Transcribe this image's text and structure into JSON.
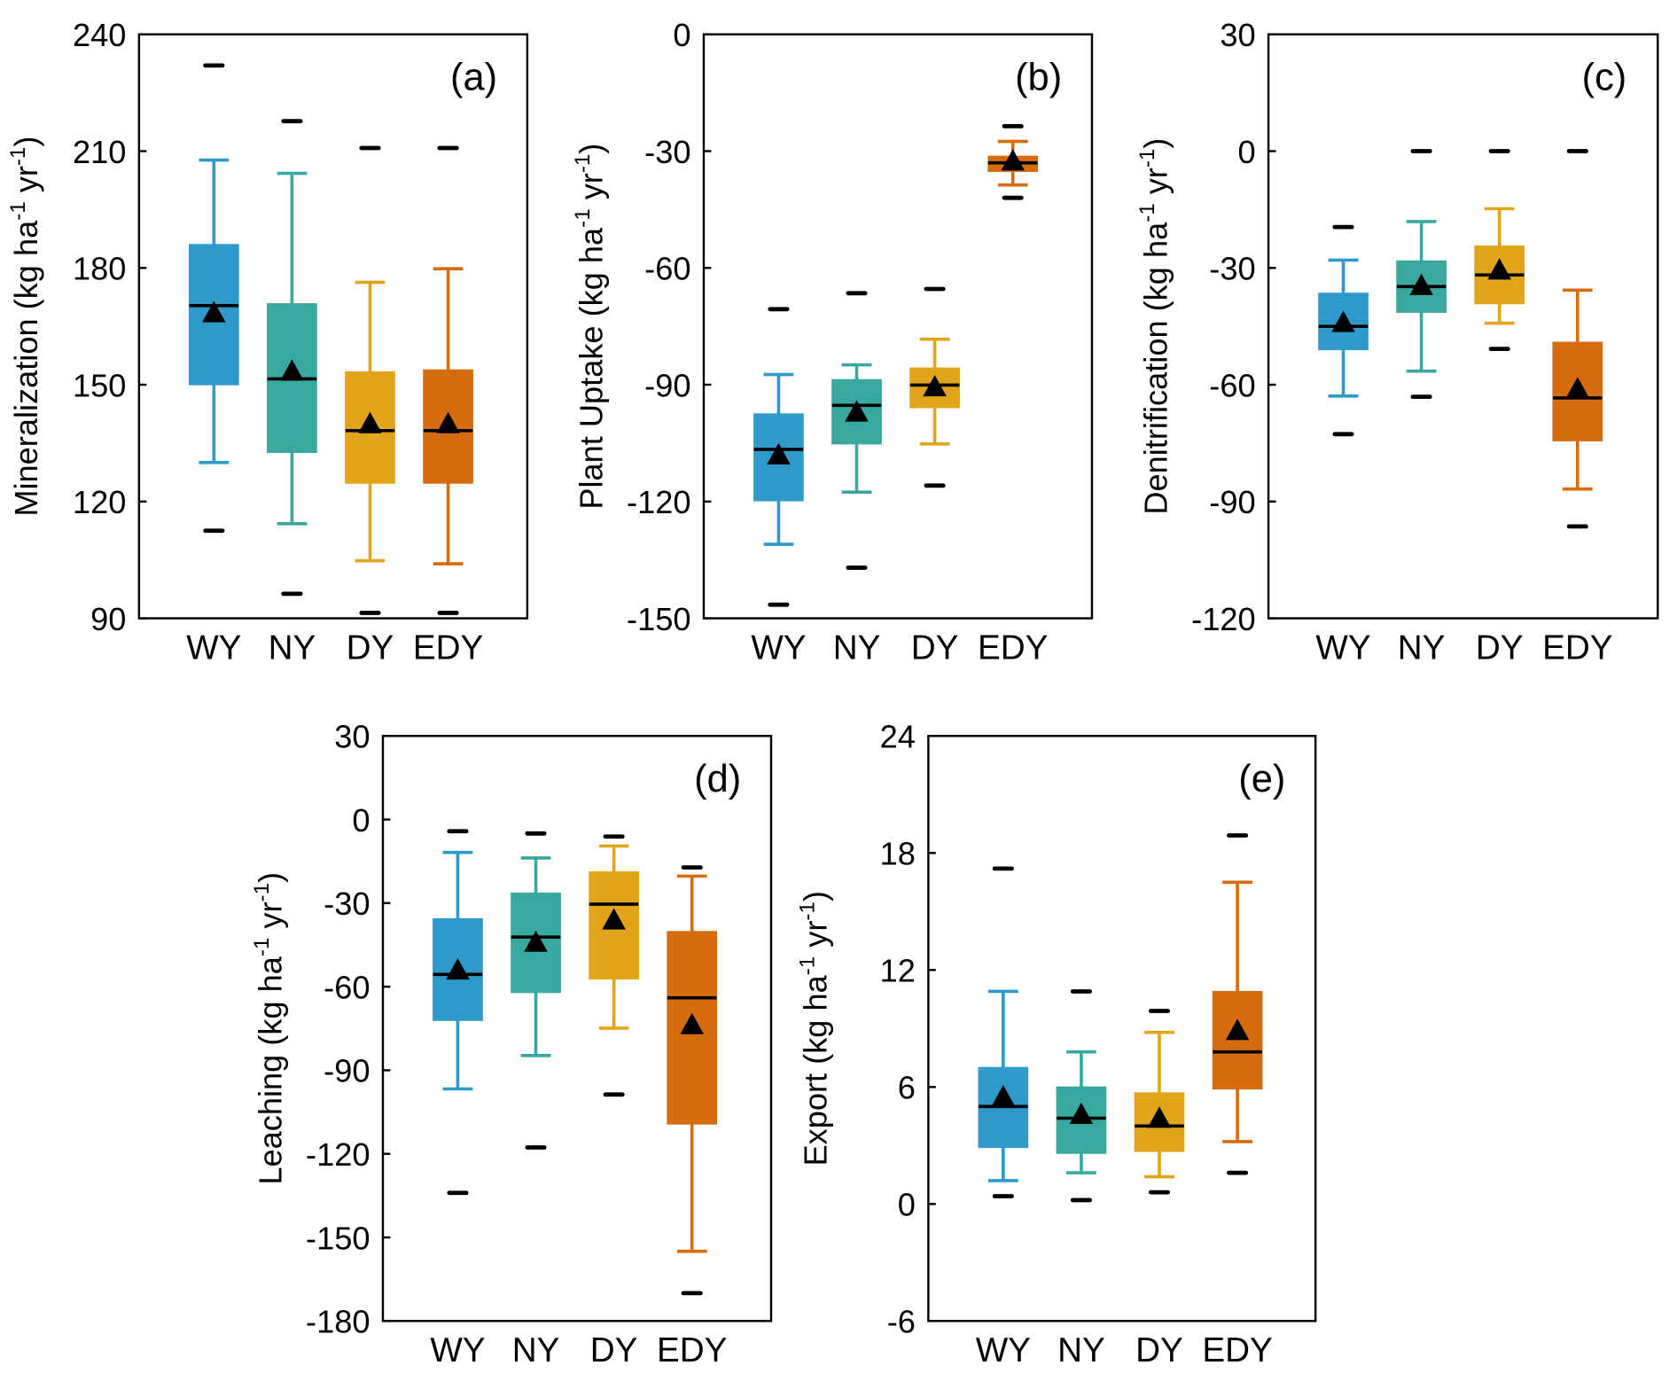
{
  "colors": {
    "WY": "#2e9acb",
    "NY": "#37a9a0",
    "DY": "#e2a41b",
    "EDY": "#d76c0e"
  },
  "chart_data": [
    {
      "type": "box",
      "panel_label": "(a)",
      "ylabel": "Mineralization (kg ha-1 yr-1)",
      "ylim": [
        90,
        240
      ],
      "yticks": [
        90,
        120,
        150,
        180,
        210,
        240
      ],
      "categories": [
        "WY",
        "NY",
        "DY",
        "EDY"
      ],
      "boxes": [
        {
          "outlier_high": 232,
          "whisker_high": 207.7,
          "q3": 186,
          "median": 170.3,
          "mean": 168.5,
          "q1": 150,
          "whisker_low": 130,
          "outlier_low": 112.5
        },
        {
          "outlier_high": 217.7,
          "whisker_high": 204.3,
          "q3": 170.8,
          "median": 151.5,
          "mean": 153.5,
          "q1": 132.6,
          "whisker_low": 114.3,
          "outlier_low": 96.3
        },
        {
          "outlier_high": 210.8,
          "whisker_high": 176.3,
          "q3": 153.3,
          "median": 138.2,
          "mean": 140,
          "q1": 124.7,
          "whisker_low": 104.8,
          "outlier_low": 91.4
        },
        {
          "outlier_high": 210.8,
          "whisker_high": 179.8,
          "q3": 153.8,
          "median": 138.2,
          "mean": 140,
          "q1": 124.7,
          "whisker_low": 104,
          "outlier_low": 91.4
        }
      ]
    },
    {
      "type": "box",
      "panel_label": "(b)",
      "ylabel": "Plant Uptake (kg ha-1 yr-1)",
      "ylim": [
        -150,
        0
      ],
      "yticks": [
        -150,
        -120,
        -90,
        -60,
        -30,
        0
      ],
      "categories": [
        "WY",
        "NY",
        "DY",
        "EDY"
      ],
      "boxes": [
        {
          "outlier_high": -70.6,
          "whisker_high": -87.4,
          "q3": -97.5,
          "median": -106.6,
          "mean": -108,
          "q1": -119.8,
          "whisker_low": -131,
          "outlier_low": -146.5
        },
        {
          "outlier_high": -66.5,
          "whisker_high": -84.9,
          "q3": -88.7,
          "median": -95.3,
          "mean": -97,
          "q1": -105.2,
          "whisker_low": -117.6,
          "outlier_low": -137
        },
        {
          "outlier_high": -65.4,
          "whisker_high": -78.3,
          "q3": -85.7,
          "median": -90.1,
          "mean": -90.5,
          "q1": -95.9,
          "whisker_low": -105.2,
          "outlier_low": -115.9
        },
        {
          "outlier_high": -23.6,
          "whisker_high": -27.5,
          "q3": -31.3,
          "median": -33,
          "mean": -32.5,
          "q1": -35.2,
          "whisker_low": -38.7,
          "outlier_low": -42
        }
      ]
    },
    {
      "type": "box",
      "panel_label": "(c)",
      "ylabel": "Denitrification (kg ha-1 yr-1)",
      "ylim": [
        -120,
        30
      ],
      "yticks": [
        -120,
        -90,
        -60,
        -30,
        0,
        30
      ],
      "categories": [
        "WY",
        "NY",
        "DY",
        "EDY"
      ],
      "boxes": [
        {
          "outlier_high": -19.5,
          "whisker_high": -28,
          "q3": -36.5,
          "median": -45,
          "mean": -44,
          "q1": -51,
          "whisker_low": -62.9,
          "outlier_low": -72.7
        },
        {
          "outlier_high": 0,
          "whisker_high": -18.1,
          "q3": -28.2,
          "median": -34.8,
          "mean": -34.5,
          "q1": -41.4,
          "whisker_low": -56.5,
          "outlier_low": -63.1
        },
        {
          "outlier_high": 0,
          "whisker_high": -14.8,
          "q3": -24.4,
          "median": -31.8,
          "mean": -30.5,
          "q1": -39.2,
          "whisker_low": -44.2,
          "outlier_low": -50.8
        },
        {
          "outlier_high": 0,
          "whisker_high": -35.7,
          "q3": -49.1,
          "median": -63.4,
          "mean": -61,
          "q1": -74.4,
          "whisker_low": -86.8,
          "outlier_low": -96.4
        }
      ]
    },
    {
      "type": "box",
      "panel_label": "(d)",
      "ylabel": "Leaching (kg ha-1 yr-1)",
      "ylim": [
        -180,
        30
      ],
      "yticks": [
        -180,
        -150,
        -120,
        -90,
        -60,
        -30,
        0,
        30
      ],
      "categories": [
        "WY",
        "NY",
        "DY",
        "EDY"
      ],
      "boxes": [
        {
          "outlier_high": -4.2,
          "whisker_high": -11.8,
          "q3": -35.6,
          "median": -55.6,
          "mean": -54,
          "q1": -72.1,
          "whisker_low": -96.7,
          "outlier_low": -134
        },
        {
          "outlier_high": -5,
          "whisker_high": -13.8,
          "q3": -26.4,
          "median": -42.2,
          "mean": -44,
          "q1": -62.1,
          "whisker_low": -84.7,
          "outlier_low": -117.7
        },
        {
          "outlier_high": -6.1,
          "whisker_high": -9.5,
          "q3": -18.8,
          "median": -30.4,
          "mean": -36,
          "q1": -57.2,
          "whisker_low": -74.9,
          "outlier_low": -98.7
        },
        {
          "outlier_high": -17.2,
          "whisker_high": -20.3,
          "q3": -40.2,
          "median": -64,
          "mean": -73.6,
          "q1": -109.3,
          "whisker_low": -155,
          "outlier_low": -170
        }
      ]
    },
    {
      "type": "box",
      "panel_label": "(e)",
      "ylabel": "Export (kg ha-1 yr-1)",
      "ylim": [
        -6,
        24
      ],
      "yticks": [
        -6,
        0,
        6,
        12,
        18,
        24
      ],
      "categories": [
        "WY",
        "NY",
        "DY",
        "EDY"
      ],
      "boxes": [
        {
          "outlier_high": 17.2,
          "whisker_high": 10.9,
          "q3": 7.0,
          "median": 5.0,
          "mean": 5.5,
          "q1": 2.9,
          "whisker_low": 1.2,
          "outlier_low": 0.4
        },
        {
          "outlier_high": 10.9,
          "whisker_high": 7.8,
          "q3": 6.0,
          "median": 4.4,
          "mean": 4.6,
          "q1": 2.6,
          "whisker_low": 1.6,
          "outlier_low": 0.2
        },
        {
          "outlier_high": 9.9,
          "whisker_high": 8.8,
          "q3": 5.7,
          "median": 4.0,
          "mean": 4.4,
          "q1": 2.7,
          "whisker_low": 1.4,
          "outlier_low": 0.6
        },
        {
          "outlier_high": 18.9,
          "whisker_high": 16.5,
          "q3": 10.9,
          "median": 7.8,
          "mean": 8.9,
          "q1": 5.9,
          "whisker_low": 3.2,
          "outlier_low": 1.6
        }
      ]
    }
  ]
}
